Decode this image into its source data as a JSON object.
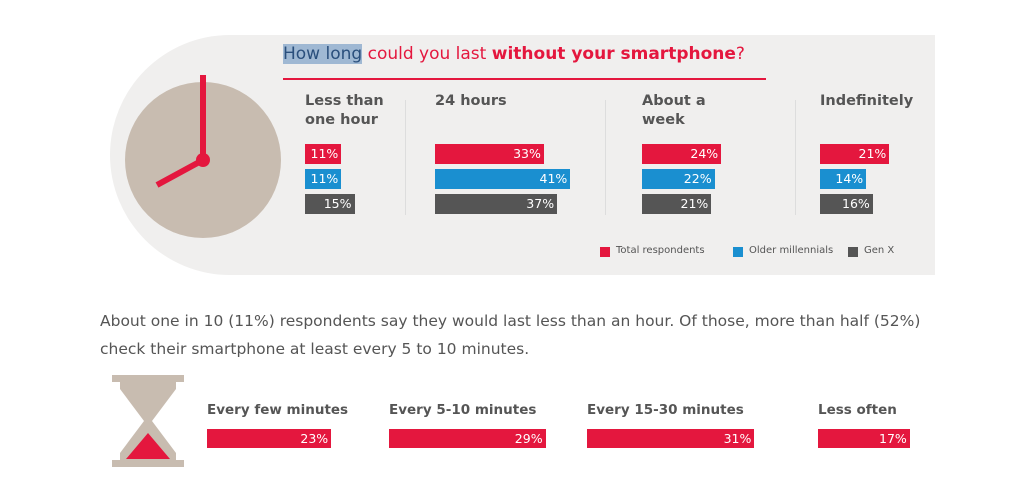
{
  "chart_data": [
    {
      "type": "bar",
      "title_parts": [
        "How long",
        " could you last ",
        "without your smartphone",
        "?"
      ],
      "categories": [
        "Less than one hour",
        "24 hours",
        "About a week",
        "Indefinitely"
      ],
      "series": [
        {
          "name": "Total respondents",
          "color": "#e4173e",
          "values": [
            11,
            33,
            24,
            21
          ],
          "value_labels": [
            "11%",
            "33%",
            "24%",
            "21%"
          ]
        },
        {
          "name": "Older millennials",
          "color": "#1a8fd0",
          "values": [
            11,
            41,
            22,
            14
          ],
          "value_labels": [
            "11%",
            "41%",
            "22%",
            "14%"
          ]
        },
        {
          "name": "Gen X",
          "color": "#555555",
          "values": [
            15,
            37,
            21,
            16
          ],
          "value_labels": [
            "15%",
            "37%",
            "21%",
            "16%"
          ]
        }
      ],
      "legend": "bottom-right"
    },
    {
      "type": "bar",
      "subtitle": "About one in 10 (11%) respondents say they would last less than an hour. Of those, more than half (52%) check their smartphone at least every 5 to 10 minutes.",
      "categories": [
        "Every few minutes",
        "Every 5-10 minutes",
        "Every 15-30 minutes",
        "Less often"
      ],
      "values": [
        23,
        29,
        31,
        17
      ],
      "value_labels": [
        "23%",
        "29%",
        "31%",
        "17%"
      ],
      "color": "#e4173e"
    }
  ]
}
